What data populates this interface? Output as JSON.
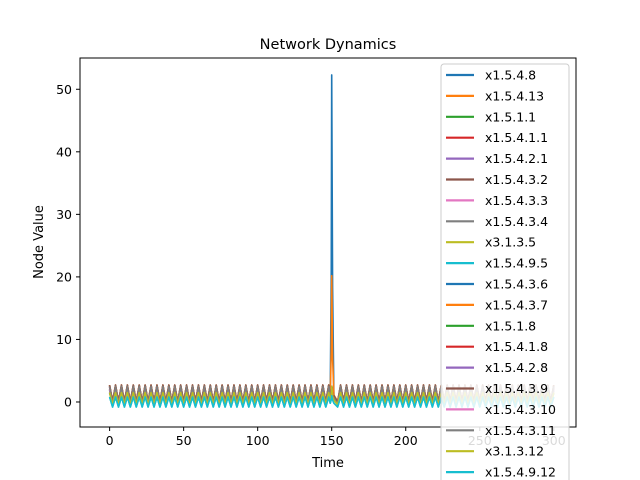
{
  "chart_data": {
    "type": "line",
    "title": "Network Dynamics",
    "xlabel": "Time",
    "ylabel": "Node Value",
    "xlim": [
      -20,
      315
    ],
    "ylim": [
      -4,
      55
    ],
    "xticks": [
      0,
      50,
      100,
      150,
      200,
      250,
      300
    ],
    "yticks": [
      0,
      10,
      20,
      30,
      40,
      50
    ],
    "grid": false,
    "legend_position": "top-right",
    "series": [
      {
        "name": "x1.5.4.8",
        "color": "#1f77b4",
        "baseline": 0.4,
        "amp": 1.0,
        "spike_peak": 52.3
      },
      {
        "name": "x1.5.4.13",
        "color": "#ff7f0e",
        "baseline": 1.0,
        "amp": 1.6,
        "spike_peak": 20.2
      },
      {
        "name": "x1.5.1.1",
        "color": "#2ca02c",
        "baseline": 0.6,
        "amp": 1.4,
        "spike_peak": 2.5
      },
      {
        "name": "x1.5.4.1.1",
        "color": "#d62728",
        "baseline": 0.8,
        "amp": 1.6,
        "spike_peak": 2.5
      },
      {
        "name": "x1.5.4.2.1",
        "color": "#9467bd",
        "baseline": 0.9,
        "amp": 1.7,
        "spike_peak": 2.5
      },
      {
        "name": "x1.5.4.3.2",
        "color": "#8c564b",
        "baseline": 1.0,
        "amp": 1.7,
        "spike_peak": 2.5
      },
      {
        "name": "x1.5.4.3.3",
        "color": "#e377c2",
        "baseline": 0.5,
        "amp": 1.5,
        "spike_peak": 2.5
      },
      {
        "name": "x1.5.4.3.4",
        "color": "#7f7f7f",
        "baseline": 0.7,
        "amp": 1.8,
        "spike_peak": 2.5
      },
      {
        "name": "x3.1.3.5",
        "color": "#bcbd22",
        "baseline": 0.3,
        "amp": 1.2,
        "spike_peak": 2.5
      },
      {
        "name": "x1.5.4.9.5",
        "color": "#17becf",
        "baseline": -0.2,
        "amp": 1.0,
        "spike_peak": 1.0
      },
      {
        "name": "x1.5.4.3.6",
        "color": "#1f77b4",
        "baseline": 0.6,
        "amp": 1.3,
        "spike_peak": 2.5
      },
      {
        "name": "x1.5.4.3.7",
        "color": "#ff7f0e",
        "baseline": 1.1,
        "amp": 1.6,
        "spike_peak": 2.5
      },
      {
        "name": "x1.5.1.8",
        "color": "#2ca02c",
        "baseline": 0.6,
        "amp": 1.4,
        "spike_peak": 2.5
      },
      {
        "name": "x1.5.4.1.8",
        "color": "#d62728",
        "baseline": 0.8,
        "amp": 1.5,
        "spike_peak": 2.5
      },
      {
        "name": "x1.5.4.2.8",
        "color": "#9467bd",
        "baseline": 0.9,
        "amp": 1.6,
        "spike_peak": 2.5
      },
      {
        "name": "x1.5.4.3.9",
        "color": "#8c564b",
        "baseline": 1.0,
        "amp": 1.7,
        "spike_peak": 2.5
      },
      {
        "name": "x1.5.4.3.10",
        "color": "#e377c2",
        "baseline": 0.5,
        "amp": 1.5,
        "spike_peak": 2.5
      },
      {
        "name": "x1.5.4.3.11",
        "color": "#7f7f7f",
        "baseline": 0.7,
        "amp": 1.8,
        "spike_peak": 2.5
      },
      {
        "name": "x3.1.3.12",
        "color": "#bcbd22",
        "baseline": 0.3,
        "amp": 1.2,
        "spike_peak": 2.5
      },
      {
        "name": "x1.5.4.9.12",
        "color": "#17becf",
        "baseline": -0.2,
        "amp": 1.0,
        "spike_peak": 1.0
      }
    ],
    "x_end": 300,
    "oscillation_period": 4,
    "spike_time": 150
  }
}
